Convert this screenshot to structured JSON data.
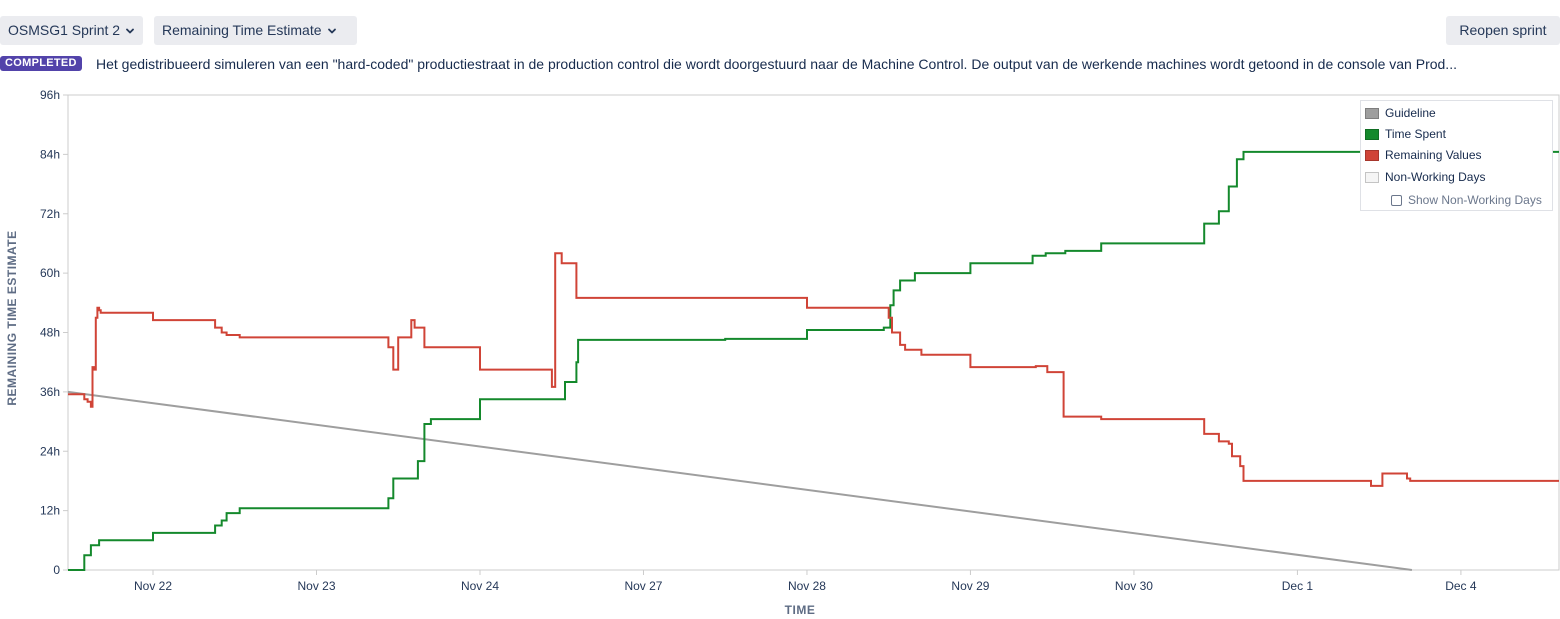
{
  "toolbar": {
    "sprint_label": "OSMSG1 Sprint 2",
    "report_label": "Remaining Time Estimate",
    "reopen_label": "Reopen sprint"
  },
  "sprint": {
    "status": "COMPLETED",
    "goal": "Het gedistribueerd simuleren van een \"hard-coded\" productiestraat in de production control die wordt doorgestuurd naar de Machine Control. De output van de werkende machines wordt getoond in de console van Prod..."
  },
  "legend": {
    "guideline": "Guideline",
    "time_spent": "Time Spent",
    "remaining": "Remaining Values",
    "non_working": "Non-Working Days",
    "show_non_working": "Show Non-Working Days"
  },
  "colors": {
    "guideline": "#9e9e9e",
    "time_spent": "#14892c",
    "remaining": "#d04437",
    "non_working": "#f5f5f5",
    "status_badge": "#5243aa"
  },
  "chart_data": {
    "type": "line",
    "xlabel": "TIME",
    "ylabel": "REMAINING TIME ESTIMATE",
    "ylim": [
      0,
      96
    ],
    "xlim": [
      -0.52,
      8.6
    ],
    "y_ticks": [
      "0",
      "12h",
      "24h",
      "36h",
      "48h",
      "60h",
      "72h",
      "84h",
      "96h"
    ],
    "x_ticks": [
      {
        "x": 0,
        "label": "Nov 22"
      },
      {
        "x": 1,
        "label": "Nov 23"
      },
      {
        "x": 2,
        "label": "Nov 24"
      },
      {
        "x": 3,
        "label": "Nov 27"
      },
      {
        "x": 4,
        "label": "Nov 28"
      },
      {
        "x": 5,
        "label": "Nov 29"
      },
      {
        "x": 6,
        "label": "Nov 30"
      },
      {
        "x": 7,
        "label": "Dec 1"
      },
      {
        "x": 8,
        "label": "Dec 4"
      }
    ],
    "grid": false,
    "legend_position": "top-right",
    "series": [
      {
        "name": "Guideline",
        "step": false,
        "points": [
          [
            -0.52,
            36
          ],
          [
            7.7,
            0
          ]
        ]
      },
      {
        "name": "Time Spent",
        "step": true,
        "points": [
          [
            -0.52,
            0
          ],
          [
            -0.42,
            0
          ],
          [
            -0.42,
            3
          ],
          [
            -0.38,
            3
          ],
          [
            -0.38,
            5
          ],
          [
            -0.33,
            5
          ],
          [
            -0.33,
            6
          ],
          [
            0,
            6
          ],
          [
            0,
            7.5
          ],
          [
            0.38,
            7.5
          ],
          [
            0.38,
            9
          ],
          [
            0.42,
            9
          ],
          [
            0.42,
            10
          ],
          [
            0.45,
            10
          ],
          [
            0.45,
            11.5
          ],
          [
            0.53,
            11.5
          ],
          [
            0.53,
            12.5
          ],
          [
            1.44,
            12.5
          ],
          [
            1.44,
            14.5
          ],
          [
            1.47,
            14.5
          ],
          [
            1.47,
            18.5
          ],
          [
            1.62,
            18.5
          ],
          [
            1.62,
            22
          ],
          [
            1.66,
            22
          ],
          [
            1.66,
            29.5
          ],
          [
            1.7,
            29.5
          ],
          [
            1.7,
            30.5
          ],
          [
            2,
            30.5
          ],
          [
            2,
            34.5
          ],
          [
            2.52,
            34.5
          ],
          [
            2.52,
            38
          ],
          [
            2.59,
            38
          ],
          [
            2.59,
            42
          ],
          [
            2.6,
            42
          ],
          [
            2.6,
            46.5
          ],
          [
            3.5,
            46.5
          ],
          [
            3.5,
            46.7
          ],
          [
            4,
            46.7
          ],
          [
            4,
            48.5
          ],
          [
            4.47,
            48.5
          ],
          [
            4.47,
            49
          ],
          [
            4.51,
            49
          ],
          [
            4.51,
            53.5
          ],
          [
            4.53,
            53.5
          ],
          [
            4.53,
            56.5
          ],
          [
            4.57,
            56.5
          ],
          [
            4.57,
            58.5
          ],
          [
            4.66,
            58.5
          ],
          [
            4.66,
            60
          ],
          [
            5,
            60
          ],
          [
            5,
            62
          ],
          [
            5.38,
            62
          ],
          [
            5.38,
            63.5
          ],
          [
            5.46,
            63.5
          ],
          [
            5.46,
            64
          ],
          [
            5.58,
            64
          ],
          [
            5.58,
            64.5
          ],
          [
            5.8,
            64.5
          ],
          [
            5.8,
            66
          ],
          [
            6.43,
            66
          ],
          [
            6.43,
            70
          ],
          [
            6.52,
            70
          ],
          [
            6.52,
            72.5
          ],
          [
            6.58,
            72.5
          ],
          [
            6.58,
            77.5
          ],
          [
            6.63,
            77.5
          ],
          [
            6.63,
            83
          ],
          [
            6.67,
            83
          ],
          [
            6.67,
            84.5
          ],
          [
            7.5,
            84.5
          ],
          [
            8.6,
            84.5
          ]
        ]
      },
      {
        "name": "Remaining Values",
        "step": true,
        "points": [
          [
            -0.52,
            35.5
          ],
          [
            -0.42,
            35.5
          ],
          [
            -0.42,
            34.5
          ],
          [
            -0.4,
            34.5
          ],
          [
            -0.4,
            34
          ],
          [
            -0.38,
            34
          ],
          [
            -0.38,
            33
          ],
          [
            -0.37,
            33
          ],
          [
            -0.37,
            41
          ],
          [
            -0.36,
            41
          ],
          [
            -0.36,
            40.5
          ],
          [
            -0.35,
            40.5
          ],
          [
            -0.35,
            51
          ],
          [
            -0.34,
            51
          ],
          [
            -0.34,
            53
          ],
          [
            -0.33,
            53
          ],
          [
            -0.33,
            52.5
          ],
          [
            -0.32,
            52.5
          ],
          [
            -0.32,
            52
          ],
          [
            0,
            52
          ],
          [
            0,
            50.5
          ],
          [
            0.38,
            50.5
          ],
          [
            0.38,
            49
          ],
          [
            0.42,
            49
          ],
          [
            0.42,
            48
          ],
          [
            0.45,
            48
          ],
          [
            0.45,
            47.5
          ],
          [
            0.53,
            47.5
          ],
          [
            0.53,
            47
          ],
          [
            1.44,
            47
          ],
          [
            1.44,
            45
          ],
          [
            1.47,
            45
          ],
          [
            1.47,
            40.5
          ],
          [
            1.5,
            40.5
          ],
          [
            1.5,
            47
          ],
          [
            1.58,
            47
          ],
          [
            1.58,
            50.5
          ],
          [
            1.6,
            50.5
          ],
          [
            1.6,
            49
          ],
          [
            1.66,
            49
          ],
          [
            1.66,
            45
          ],
          [
            2,
            45
          ],
          [
            2,
            40.5
          ],
          [
            2.44,
            40.5
          ],
          [
            2.44,
            37
          ],
          [
            2.46,
            37
          ],
          [
            2.46,
            64
          ],
          [
            2.5,
            64
          ],
          [
            2.5,
            62
          ],
          [
            2.59,
            62
          ],
          [
            2.59,
            55
          ],
          [
            4,
            55
          ],
          [
            4,
            53
          ],
          [
            4.5,
            53
          ],
          [
            4.5,
            51
          ],
          [
            4.52,
            51
          ],
          [
            4.52,
            48
          ],
          [
            4.57,
            48
          ],
          [
            4.57,
            45.5
          ],
          [
            4.6,
            45.5
          ],
          [
            4.6,
            44.5
          ],
          [
            4.7,
            44.5
          ],
          [
            4.7,
            43.5
          ],
          [
            5,
            43.5
          ],
          [
            5,
            41
          ],
          [
            5.4,
            41
          ],
          [
            5.4,
            41.2
          ],
          [
            5.47,
            41.2
          ],
          [
            5.47,
            40
          ],
          [
            5.57,
            40
          ],
          [
            5.57,
            31
          ],
          [
            5.8,
            31
          ],
          [
            5.8,
            30.5
          ],
          [
            6.43,
            30.5
          ],
          [
            6.43,
            27.5
          ],
          [
            6.52,
            27.5
          ],
          [
            6.52,
            26
          ],
          [
            6.58,
            26
          ],
          [
            6.58,
            25.5
          ],
          [
            6.6,
            25.5
          ],
          [
            6.6,
            23
          ],
          [
            6.65,
            23
          ],
          [
            6.65,
            21
          ],
          [
            6.67,
            21
          ],
          [
            6.67,
            18
          ],
          [
            7.45,
            18
          ],
          [
            7.45,
            17
          ],
          [
            7.52,
            17
          ],
          [
            7.52,
            19.5
          ],
          [
            7.67,
            19.5
          ],
          [
            7.67,
            18.5
          ],
          [
            7.69,
            18.5
          ],
          [
            7.69,
            18
          ],
          [
            8.6,
            18
          ]
        ]
      }
    ]
  }
}
